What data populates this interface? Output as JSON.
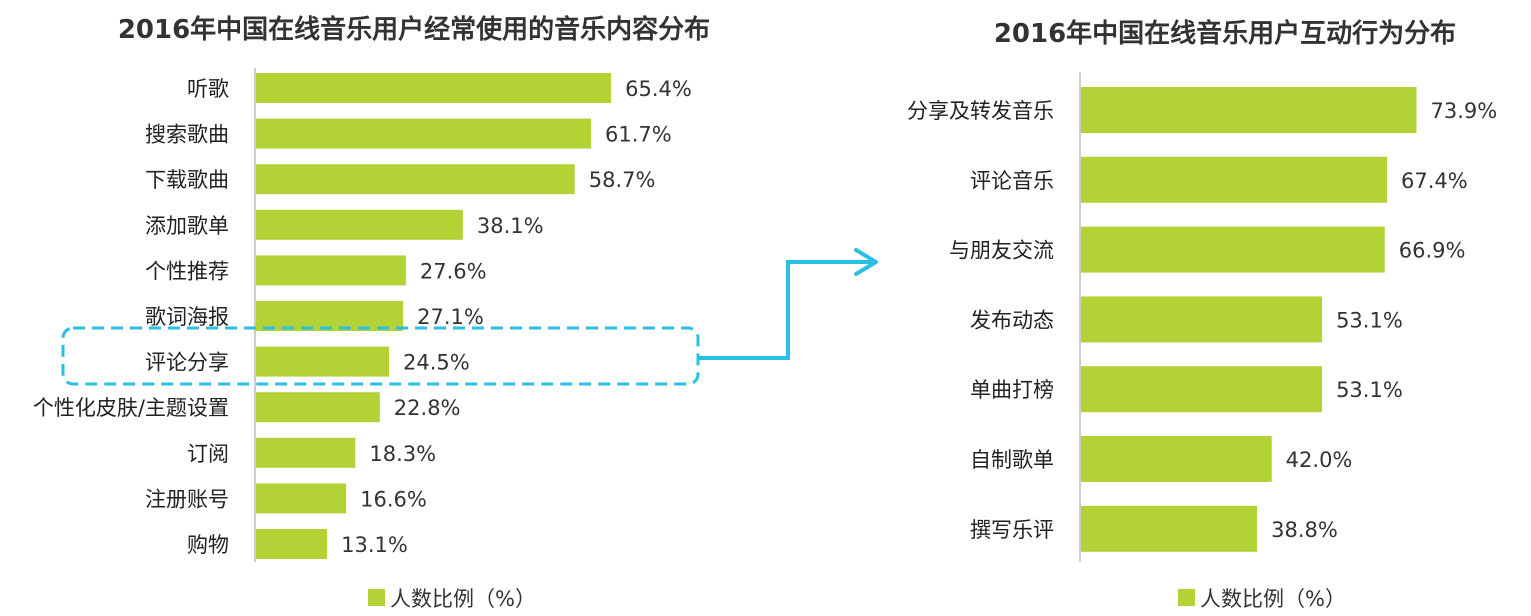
{
  "chart_data": [
    {
      "type": "bar",
      "orientation": "horizontal",
      "title": "2016年中国在线音乐用户经常使用的音乐内容分布",
      "categories": [
        "听歌",
        "搜索歌曲",
        "下载歌曲",
        "添加歌单",
        "个性推荐",
        "歌词海报",
        "评论分享",
        "个性化皮肤/主题设置",
        "订阅",
        "注册账号",
        "购物"
      ],
      "values": [
        65.4,
        61.7,
        58.7,
        38.1,
        27.6,
        27.1,
        24.5,
        22.8,
        18.3,
        16.6,
        13.1
      ],
      "value_labels": [
        "65.4%",
        "61.7%",
        "58.7%",
        "38.1%",
        "27.6%",
        "27.1%",
        "24.5%",
        "22.8%",
        "18.3%",
        "16.6%",
        "13.1%"
      ],
      "legend": "人数比例（%）",
      "highlight_category": "评论分享",
      "xlim": [
        0,
        100
      ],
      "grid": false,
      "legend_position": "bottom"
    },
    {
      "type": "bar",
      "orientation": "horizontal",
      "title": "2016年中国在线音乐用户互动行为分布",
      "categories": [
        "分享及转发音乐",
        "评论音乐",
        "与朋友交流",
        "发布动态",
        "单曲打榜",
        "自制歌单",
        "撰写乐评"
      ],
      "values": [
        73.9,
        67.4,
        66.9,
        53.1,
        53.1,
        42.0,
        38.8
      ],
      "value_labels": [
        "73.9%",
        "67.4%",
        "66.9%",
        "53.1%",
        "53.1%",
        "42.0%",
        "38.8%"
      ],
      "legend": "人数比例（%）",
      "xlim": [
        0,
        100
      ],
      "grid": false,
      "legend_position": "bottom"
    }
  ],
  "colors": {
    "bar": "#b2d235",
    "highlight": "#2bbfe3",
    "axis": "#999999",
    "text": "#222222"
  }
}
